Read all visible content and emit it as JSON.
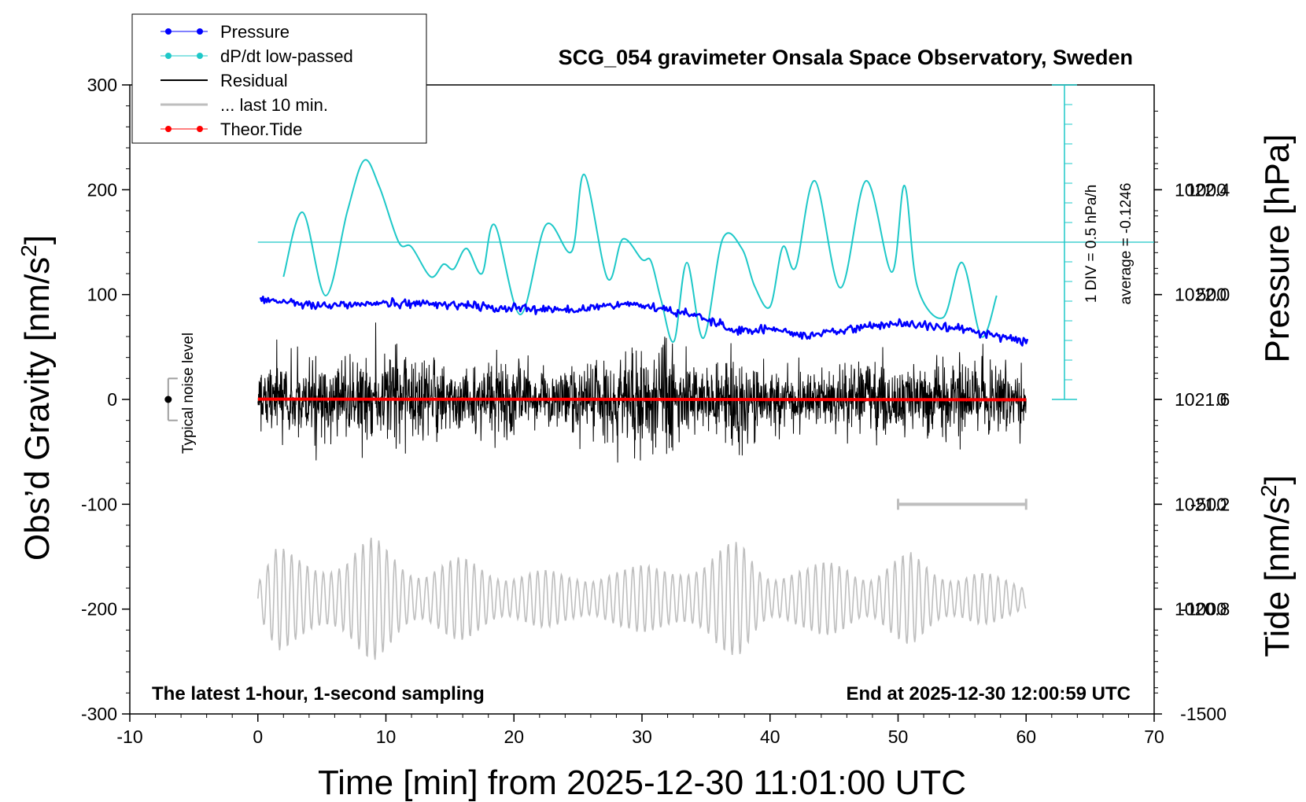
{
  "chart_data": {
    "type": "line",
    "title": "SCG_054 gravimeter Onsala Space Observatory, Sweden",
    "xlabel": "Time [min] from 2025-12-30 11:01:00 UTC",
    "ylabel_left": "Obs’d Gravity [nm/s²]",
    "ylabel_right_top": "Pressure [hPa]",
    "ylabel_right_bottom": "Tide [nm/s²]",
    "note_left": "The latest 1-hour, 1-second sampling",
    "note_right": "End at 2025-12-30 12:00:59 UTC",
    "noise_label": "Typical noise level",
    "dpdt_scale_label": "1 DIV = 0.5 hPa/h",
    "dpdt_average_label": "average = -0.1246",
    "xlim": [
      -10,
      70
    ],
    "ylim": [
      -300,
      300
    ],
    "pressure_lim": [
      1020.4,
      1022.8
    ],
    "tide_lim": [
      -1500,
      1500
    ],
    "x_ticks": [
      "-10",
      "0",
      "10",
      "20",
      "30",
      "40",
      "50",
      "60",
      "70"
    ],
    "y_ticks": [
      "-300",
      "-200",
      "-100",
      "0",
      "100",
      "200",
      "300"
    ],
    "pressure_ticks": [
      "1020.8",
      "1021.2",
      "1021.6",
      "1022.0",
      "1022.4"
    ],
    "tide_ticks": [
      "-1500",
      "-1000",
      "-500",
      "0",
      "500",
      "1000"
    ],
    "grid": false,
    "legend_position": "top-left",
    "legend": [
      "Pressure",
      "dP/dt low-passed",
      "Residual",
      "... last 10 min.",
      "Theor.Tide"
    ],
    "colors": {
      "pressure": "#0000ff",
      "dpdt": "#1ec8c8",
      "residual": "#000000",
      "residual_smooth": "#c8c800",
      "last10": "#bebebe",
      "tide": "#ff0000"
    },
    "series": [
      {
        "name": "Pressure",
        "unit": "hPa",
        "x": [
          0,
          5,
          10,
          15,
          20,
          25,
          27,
          30,
          35,
          37,
          40,
          43,
          45,
          50,
          55,
          60
        ],
        "values": [
          1021.98,
          1021.96,
          1021.97,
          1021.96,
          1021.95,
          1021.94,
          1021.96,
          1021.96,
          1021.91,
          1021.86,
          1021.87,
          1021.84,
          1021.86,
          1021.89,
          1021.87,
          1021.82
        ]
      },
      {
        "name": "dP/dt low-passed",
        "unit": "hPa/h",
        "x": [
          2,
          3.5,
          5.3,
          7,
          8.3,
          9.5,
          11,
          12,
          13.5,
          14.5,
          15.3,
          16.3,
          17.5,
          18.5,
          20.5,
          22.5,
          24.5,
          25.5,
          27.3,
          28.5,
          30,
          30.7,
          31.5,
          32.5,
          33.5,
          34.8,
          36.3,
          37.8,
          38.8,
          40,
          41,
          42,
          43.5,
          45.5,
          47.5,
          49.5,
          50.5,
          51.5,
          53.5,
          55,
          56.5,
          57.7
        ],
        "values": [
          -0.22,
          0.19,
          -0.34,
          0.2,
          0.52,
          0.35,
          0.0,
          -0.03,
          -0.22,
          -0.14,
          -0.17,
          -0.04,
          -0.2,
          0.11,
          -0.46,
          0.11,
          -0.06,
          0.43,
          -0.23,
          0.02,
          -0.11,
          -0.12,
          -0.37,
          -0.63,
          -0.13,
          -0.61,
          0.02,
          -0.04,
          -0.28,
          -0.41,
          -0.03,
          -0.16,
          0.39,
          -0.29,
          0.39,
          -0.19,
          0.36,
          -0.28,
          -0.48,
          -0.13,
          -0.6,
          -0.34
        ]
      },
      {
        "name": "Residual",
        "unit": "nm/s^2",
        "x": [
          0,
          5,
          10,
          15,
          20,
          25,
          30,
          35,
          40,
          45,
          50,
          55,
          60
        ],
        "values": [
          0,
          0,
          0,
          0,
          0,
          0,
          0,
          0,
          0,
          0,
          0,
          0,
          0
        ]
      },
      {
        "name": "... last 10 min.",
        "unit": "nm/s^2",
        "x": [
          50,
          60
        ],
        "values": [
          -100,
          -100
        ]
      },
      {
        "name": "Theor.Tide",
        "unit": "nm/s^2",
        "x": [
          0,
          10,
          20,
          30,
          40,
          50,
          60
        ],
        "values": [
          1.5,
          1.2,
          0.8,
          0.3,
          -0.3,
          -0.9,
          -1.5
        ]
      }
    ],
    "noise_level": {
      "x": -7,
      "value": 0,
      "range": [
        -20,
        20
      ]
    }
  }
}
